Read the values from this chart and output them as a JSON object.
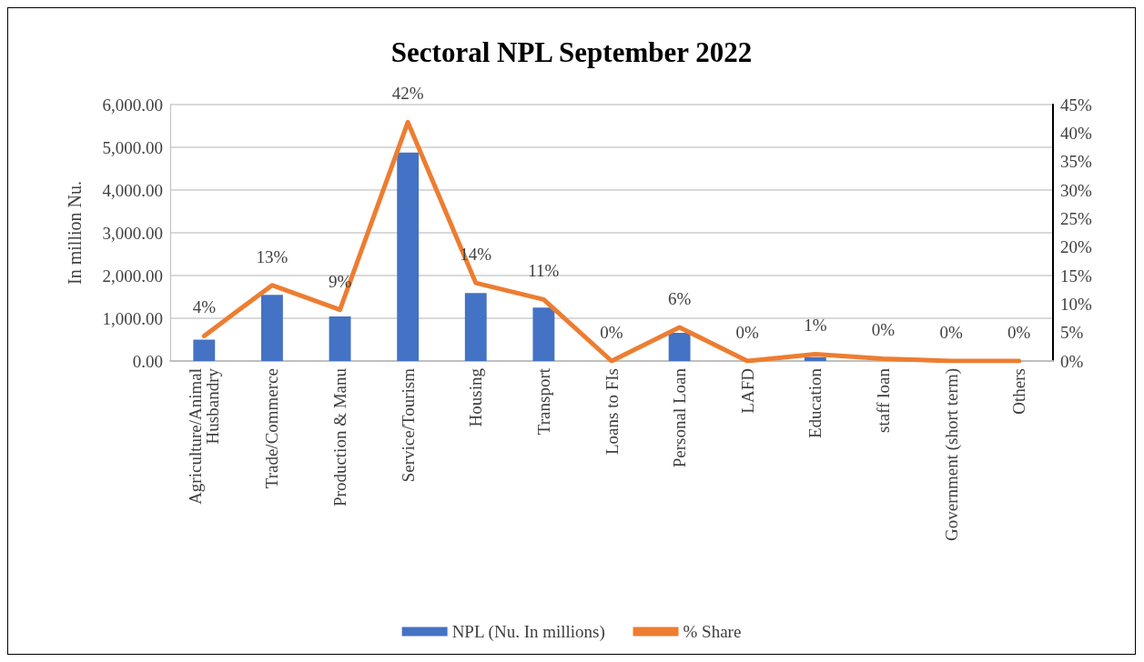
{
  "chart_data": {
    "type": "bar",
    "title": "Sectoral NPL September 2022",
    "ylabel": "In million Nu.",
    "categories": [
      "Agriculture/Animal Husbandry",
      "Trade/Commerce",
      "Production & Manu",
      "Service/Tourism",
      "Housing",
      "Transport",
      "Loans to FIs",
      "Personal Loan",
      "LAFD",
      "Education",
      "staff loan",
      "Government (short term)",
      "Others"
    ],
    "series": [
      {
        "name": "NPL (Nu. In millions)",
        "color": "#4472c4",
        "values": [
          500,
          1550,
          1040,
          4880,
          1590,
          1250,
          0,
          660,
          0,
          90,
          null,
          0,
          0
        ]
      },
      {
        "name": "% Share",
        "type": "line",
        "axis": "y2",
        "color": "#ed7d31",
        "values": [
          4.4,
          13.3,
          9.0,
          41.9,
          13.7,
          10.8,
          0,
          5.9,
          0,
          1.2,
          0.4,
          0,
          0
        ],
        "value_labels": [
          "4%",
          "13%",
          "9%",
          "42%",
          "14%",
          "11%",
          "0%",
          "6%",
          "0%",
          "1%",
          "0%",
          "0%",
          "0%"
        ]
      }
    ],
    "ylim": [
      0,
      6000
    ],
    "yticks": [
      {
        "value": 0,
        "label": "0.00"
      },
      {
        "value": 1000,
        "label": "1,000.00"
      },
      {
        "value": 2000,
        "label": "2,000.00"
      },
      {
        "value": 3000,
        "label": "3,000.00"
      },
      {
        "value": 4000,
        "label": "4,000.00"
      },
      {
        "value": 5000,
        "label": "5,000.00"
      },
      {
        "value": 6000,
        "label": "6,000.00"
      }
    ],
    "y2lim": [
      0,
      45
    ],
    "y2ticks": [
      {
        "value": 0,
        "label": "0%"
      },
      {
        "value": 5,
        "label": "5%"
      },
      {
        "value": 10,
        "label": "10%"
      },
      {
        "value": 15,
        "label": "15%"
      },
      {
        "value": 20,
        "label": "20%"
      },
      {
        "value": 25,
        "label": "25%"
      },
      {
        "value": 30,
        "label": "30%"
      },
      {
        "value": 35,
        "label": "35%"
      },
      {
        "value": 40,
        "label": "40%"
      },
      {
        "value": 45,
        "label": "45%"
      }
    ],
    "grid": "y",
    "legend": "bottom",
    "marker": "none",
    "line_style": "solid"
  }
}
